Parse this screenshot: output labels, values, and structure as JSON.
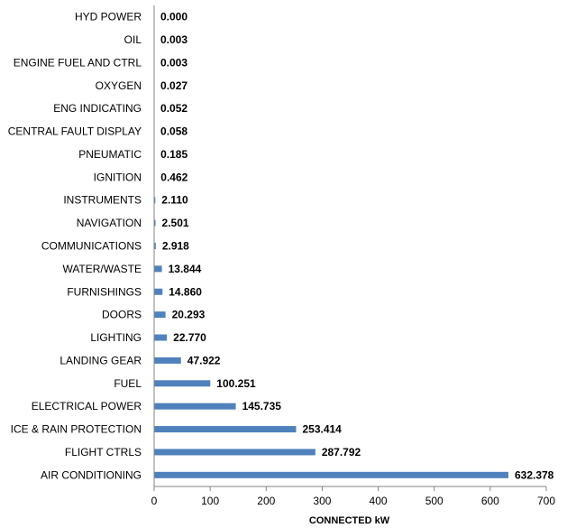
{
  "chart_data": {
    "type": "bar",
    "orientation": "horizontal",
    "title": "",
    "xlabel": "CONNECTED kW",
    "ylabel": "",
    "xlim": [
      0,
      700
    ],
    "xticks": [
      0,
      100,
      200,
      300,
      400,
      500,
      600,
      700
    ],
    "grid": false,
    "legend": "none",
    "bar_color": "#4F81BD",
    "categories": [
      "HYD POWER",
      "OIL",
      "ENGINE FUEL AND CTRL",
      "OXYGEN",
      "ENG INDICATING",
      "CENTRAL FAULT DISPLAY",
      "PNEUMATIC",
      "IGNITION",
      "INSTRUMENTS",
      "NAVIGATION",
      "COMMUNICATIONS",
      "WATER/WASTE",
      "FURNISHINGS",
      "DOORS",
      "LIGHTING",
      "LANDING GEAR",
      "FUEL",
      "ELECTRICAL POWER",
      "ICE & RAIN PROTECTION",
      "FLIGHT CTRLS",
      "AIR CONDITIONING"
    ],
    "values": [
      0.0,
      0.003,
      0.003,
      0.027,
      0.052,
      0.058,
      0.185,
      0.462,
      2.11,
      2.501,
      2.918,
      13.844,
      14.86,
      20.293,
      22.77,
      47.922,
      100.251,
      145.735,
      253.414,
      287.792,
      632.378
    ],
    "value_labels": [
      "0.000",
      "0.003",
      "0.003",
      "0.027",
      "0.052",
      "0.058",
      "0.185",
      "0.462",
      "2.110",
      "2.501",
      "2.918",
      "13.844",
      "14.860",
      "20.293",
      "22.770",
      "47.922",
      "100.251",
      "145.735",
      "253.414",
      "287.792",
      "632.378"
    ]
  }
}
